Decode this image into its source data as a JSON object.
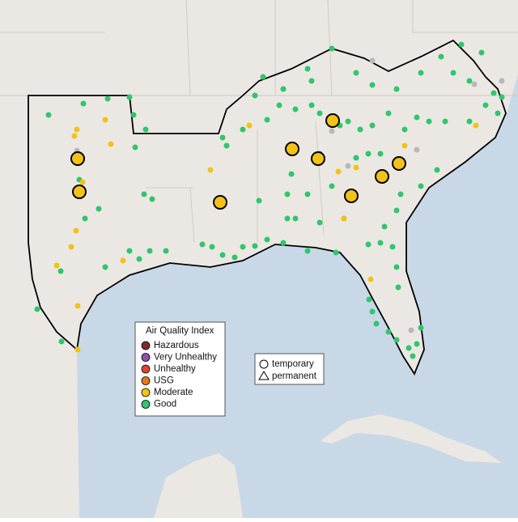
{
  "legend": {
    "title": "Air Quality Index",
    "items": [
      {
        "label": "Hazardous",
        "color": "#7e2b2b"
      },
      {
        "label": "Very Unhealthy",
        "color": "#8e4fb0"
      },
      {
        "label": "Unhealthy",
        "color": "#e0432f"
      },
      {
        "label": "USG",
        "color": "#e27a1c"
      },
      {
        "label": "Moderate",
        "color": "#f2c218"
      },
      {
        "label": "Good",
        "color": "#2fc66d"
      }
    ]
  },
  "shape_legend": {
    "items": [
      "temporary",
      "permanent"
    ]
  }
}
